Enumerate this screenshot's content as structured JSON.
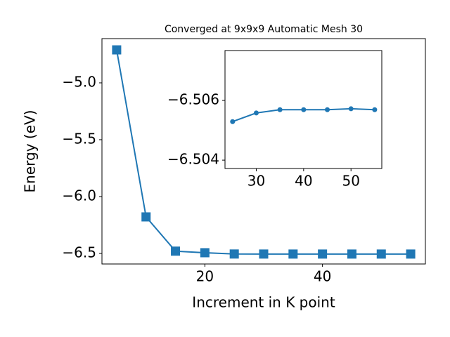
{
  "chart_data": [
    {
      "type": "line",
      "title": "Converged at 9x9x9 Automatic Mesh 30",
      "xlabel": "Increment in K point",
      "ylabel": "Energy (eV)",
      "x": [
        5,
        10,
        15,
        20,
        25,
        30,
        35,
        40,
        45,
        50,
        55
      ],
      "series": [
        {
          "color": "#1f77b4",
          "marker": "square",
          "values": [
            -4.71,
            -6.179,
            -6.48,
            -6.494,
            -6.50529,
            -6.50558,
            -6.50569,
            -6.50569,
            -6.50569,
            -6.50572,
            -6.50569
          ]
        }
      ],
      "xlim": [
        2.5,
        57.5
      ],
      "ylim": [
        -6.593,
        -4.611
      ],
      "xticks": [
        20,
        40
      ],
      "yticks": [
        {
          "value": -5.0,
          "label": "−5.0"
        },
        {
          "value": -5.5,
          "label": "−5.5"
        },
        {
          "value": -6.0,
          "label": "−6.0"
        },
        {
          "value": -6.5,
          "label": "−6.5"
        }
      ]
    },
    {
      "type": "line",
      "x": [
        25,
        30,
        35,
        40,
        45,
        50,
        55
      ],
      "series": [
        {
          "color": "#1f77b4",
          "marker": "circle",
          "values": [
            -6.50529,
            -6.50558,
            -6.50569,
            -6.50569,
            -6.50569,
            -6.50572,
            -6.50569
          ]
        }
      ],
      "xlim": [
        23.4,
        56.5
      ],
      "ylim": [
        -6.50372,
        -6.50767
      ],
      "xticks": [
        30,
        40,
        50
      ],
      "yticks": [
        {
          "value": -6.506,
          "label": "−6.506"
        },
        {
          "value": -6.504,
          "label": "−6.504"
        }
      ]
    }
  ]
}
